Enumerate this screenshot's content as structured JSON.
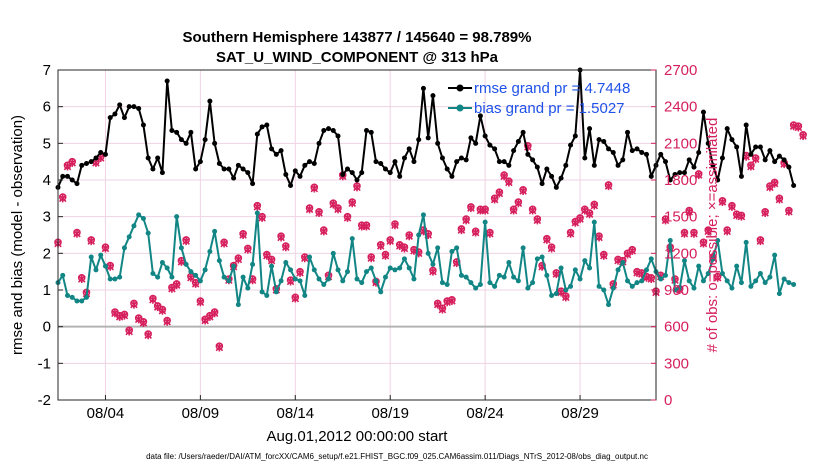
{
  "chart_data": {
    "type": "line",
    "title_line1": "Southern Hemisphere 143877 / 145640 = 98.789%",
    "title_line2": "SAT_U_WIND_COMPONENT @ 313 hPa",
    "xlabel": "Aug.01,2012 00:00:00 start",
    "ylabel_left": "rmse and bias (model - observation)",
    "ylabel_right": "# of obs: o=possible; ×=assimilated",
    "footnote": "data file: /Users/raeder/DAI/ATM_forcXX/CAM6_setup/f.e21.FHIST_BGC.f09_025.CAM6assim.011/Diags_NTrS_2012-08/obs_diag_output.nc",
    "xlim": [
      1.5,
      33
    ],
    "ylim_left": [
      -2,
      7
    ],
    "ylim_right": [
      0,
      2700
    ],
    "x_ticks": [
      4,
      9,
      14,
      19,
      24,
      29
    ],
    "x_tick_labels": [
      "08/04",
      "08/09",
      "08/14",
      "08/19",
      "08/24",
      "08/29"
    ],
    "y_ticks_left": [
      -2,
      -1,
      0,
      1,
      2,
      3,
      4,
      5,
      6,
      7
    ],
    "y_tick_labels_left": [
      "-2",
      "-1",
      "0",
      "1",
      "2",
      "3",
      "4",
      "5",
      "6",
      "7"
    ],
    "y_ticks_right": [
      0,
      300,
      600,
      900,
      1200,
      1500,
      1800,
      2100,
      2400,
      2700
    ],
    "y_tick_labels_right": [
      "0",
      "300",
      "600",
      "900",
      "1200",
      "1500",
      "1800",
      "2100",
      "2400",
      "2700"
    ],
    "x_start": 1.5,
    "x_step": 0.25,
    "colors": {
      "rmse": "#000000",
      "bias": "#128585",
      "obs": "#d6205e",
      "zero_line": "#b3b3b3",
      "legend_text": "#1f52e8",
      "grid": "#efd3e3"
    },
    "series": [
      {
        "name": "rmse grand pr = 4.7448",
        "values": [
          3.8,
          4.1,
          4.1,
          4.0,
          3.9,
          4.4,
          4.45,
          4.5,
          4.6,
          4.75,
          4.7,
          5.7,
          5.8,
          6.05,
          5.7,
          6.0,
          6.0,
          5.95,
          5.5,
          4.6,
          4.3,
          4.6,
          4.2,
          6.7,
          5.35,
          5.3,
          5.1,
          5.0,
          5.3,
          4.3,
          4.5,
          5.1,
          6.15,
          5.0,
          4.45,
          4.3,
          4.3,
          4.05,
          4.4,
          4.3,
          4.2,
          3.9,
          5.25,
          5.45,
          5.5,
          4.85,
          4.7,
          4.8,
          4.15,
          3.85,
          4.25,
          4.1,
          4.4,
          4.5,
          4.45,
          5.0,
          5.35,
          5.4,
          5.35,
          5.2,
          4.15,
          4.3,
          4.2,
          4.0,
          4.2,
          5.35,
          5.3,
          4.5,
          4.45,
          4.3,
          4.2,
          4.5,
          4.1,
          4.6,
          4.85,
          4.5,
          5.1,
          6.5,
          5.15,
          6.3,
          5.0,
          4.6,
          4.3,
          4.1,
          4.5,
          4.6,
          4.55,
          5.15,
          5.0,
          5.75,
          5.2,
          4.95,
          4.85,
          4.5,
          4.5,
          4.4,
          4.8,
          5.05,
          5.3,
          4.7,
          4.55,
          4.35,
          3.9,
          4.3,
          4.1,
          3.8,
          4.05,
          4.4,
          4.95,
          5.2,
          7.0,
          4.6,
          5.4,
          4.4,
          5.1,
          5.05,
          4.85,
          4.75,
          4.4,
          4.55,
          5.3,
          4.8,
          4.85,
          4.75,
          4.7,
          4.1,
          4.4,
          4.7,
          4.5,
          4.0,
          4.15,
          4.2,
          4.2,
          4.55,
          4.35,
          4.75,
          5.85,
          5.0,
          4.4,
          4.0,
          4.6,
          5.4,
          5.1,
          4.9,
          4.1,
          5.5,
          4.7,
          4.9,
          4.9,
          4.55,
          4.8,
          4.5,
          4.65,
          4.55,
          4.35,
          3.85
        ]
      },
      {
        "name": "bias grand pr = 1.5027",
        "values": [
          1.2,
          1.4,
          0.85,
          0.8,
          0.7,
          0.7,
          0.8,
          1.9,
          1.55,
          1.95,
          1.65,
          1.3,
          1.3,
          1.35,
          2.15,
          2.45,
          2.75,
          3.05,
          2.95,
          2.55,
          1.45,
          1.35,
          1.75,
          1.6,
          1.35,
          3.0,
          2.15,
          1.7,
          1.5,
          1.4,
          1.25,
          1.55,
          2.05,
          2.6,
          1.8,
          1.35,
          1.25,
          1.65,
          0.6,
          1.35,
          1.05,
          1.7,
          3.1,
          0.95,
          0.85,
          1.65,
          0.95,
          1.25,
          1.75,
          1.55,
          1.3,
          1.25,
          0.85,
          1.9,
          1.55,
          1.3,
          1.15,
          1.3,
          2.0,
          1.55,
          1.25,
          1.5,
          2.4,
          1.3,
          1.2,
          1.5,
          1.6,
          1.25,
          0.95,
          1.35,
          1.6,
          1.55,
          1.6,
          1.85,
          1.6,
          1.3,
          2.5,
          3.05,
          2.0,
          1.7,
          2.15,
          1.2,
          1.15,
          2.05,
          2.15,
          1.4,
          1.35,
          1.2,
          1.05,
          1.15,
          2.85,
          1.2,
          1.1,
          1.4,
          1.35,
          1.75,
          1.35,
          1.25,
          2.15,
          1.05,
          1.2,
          1.85,
          1.9,
          1.4,
          0.85,
          0.9,
          1.6,
          1.0,
          1.1,
          1.55,
          1.3,
          1.8,
          1.6,
          2.85,
          1.1,
          1.0,
          0.6,
          1.05,
          1.55,
          1.75,
          1.25,
          1.1,
          1.2,
          1.25,
          1.55,
          1.85,
          1.5,
          1.3,
          1.4,
          2.35,
          1.0,
          1.05,
          1.8,
          1.25,
          1.05,
          1.65,
          1.25,
          1.45,
          1.85,
          2.35,
          1.45,
          1.25,
          1.05,
          1.65,
          1.2,
          2.3,
          1.1,
          1.25,
          1.45,
          1.2,
          1.35,
          1.95,
          0.9,
          1.3,
          1.2,
          1.15
        ]
      }
    ],
    "obs_possible": [
      1290,
      1660,
      1920,
      1950,
      1370,
      1000,
      880,
      1310,
      1950,
      1990,
      1250,
      1100,
      720,
      690,
      700,
      570,
      790,
      670,
      640,
      540,
      830,
      770,
      740,
      650,
      920,
      950,
      1140,
      1310,
      1010,
      960,
      810,
      660,
      690,
      720,
      440,
      1290,
      990,
      1100,
      1160,
      1360,
      1240,
      990,
      1590,
      1500,
      1190,
      1150,
      910,
      1340,
      1260,
      980,
      840,
      1050,
      1170,
      1570,
      1740,
      1540,
      1390,
      1020,
      1610,
      1570,
      1840,
      1500,
      1620,
      1750,
      1430,
      1430,
      1170,
      970,
      1270,
      1190,
      1310,
      1440,
      1270,
      1250,
      1350,
      1230,
      1210,
      1390,
      1360,
      1060,
      790,
      750,
      810,
      820,
      1130,
      1400,
      1480,
      1580,
      1380,
      1560,
      1560,
      1370,
      1650,
      1700,
      1840,
      1790,
      1560,
      1620,
      1720,
      2080,
      1560,
      1480,
      1100,
      1320,
      1250,
      1040,
      890,
      850,
      1370,
      1460,
      1490,
      1560,
      1530,
      1600,
      1340,
      1190,
      1760,
      950,
      1150,
      1140,
      1200,
      1230,
      1050,
      1040,
      1010,
      1000,
      890,
      1020,
      1480,
      1250,
      990,
      910,
      1370,
      1550,
      1370,
      1850,
      1290,
      1390,
      1170,
      1010,
      1630,
      1390,
      1590,
      1520,
      1510,
      2000,
      1920,
      1980,
      1310,
      1540,
      1750,
      1780,
      1650,
      1940,
      1550,
      2250,
      2240,
      2170
    ],
    "obs_assimilated": [
      1280,
      1650,
      1910,
      1940,
      1360,
      990,
      870,
      1300,
      1940,
      1980,
      1240,
      1090,
      710,
      680,
      690,
      560,
      780,
      660,
      630,
      530,
      820,
      760,
      730,
      640,
      910,
      940,
      1130,
      1300,
      1000,
      950,
      800,
      650,
      680,
      710,
      430,
      1280,
      980,
      1090,
      1150,
      1350,
      1230,
      980,
      1580,
      1490,
      1180,
      1140,
      900,
      1330,
      1250,
      970,
      830,
      1040,
      1160,
      1560,
      1730,
      1530,
      1380,
      1010,
      1600,
      1560,
      1830,
      1490,
      1610,
      1740,
      1420,
      1420,
      1160,
      960,
      1260,
      1180,
      1300,
      1430,
      1260,
      1240,
      1340,
      1220,
      1200,
      1380,
      1350,
      1050,
      780,
      740,
      800,
      810,
      1120,
      1390,
      1470,
      1570,
      1370,
      1550,
      1550,
      1360,
      1640,
      1690,
      1830,
      1780,
      1550,
      1610,
      1710,
      2070,
      1550,
      1470,
      1090,
      1310,
      1240,
      1030,
      880,
      840,
      1360,
      1450,
      1480,
      1550,
      1520,
      1590,
      1330,
      1180,
      1750,
      940,
      1140,
      1130,
      1190,
      1220,
      1040,
      1030,
      1000,
      990,
      880,
      1010,
      1470,
      1240,
      980,
      900,
      1360,
      1540,
      1360,
      1840,
      1280,
      1380,
      1160,
      1000,
      1620,
      1380,
      1580,
      1510,
      1500,
      1990,
      1910,
      1970,
      1300,
      1530,
      1740,
      1770,
      1640,
      1930,
      1540,
      2240,
      2230,
      2160
    ]
  }
}
